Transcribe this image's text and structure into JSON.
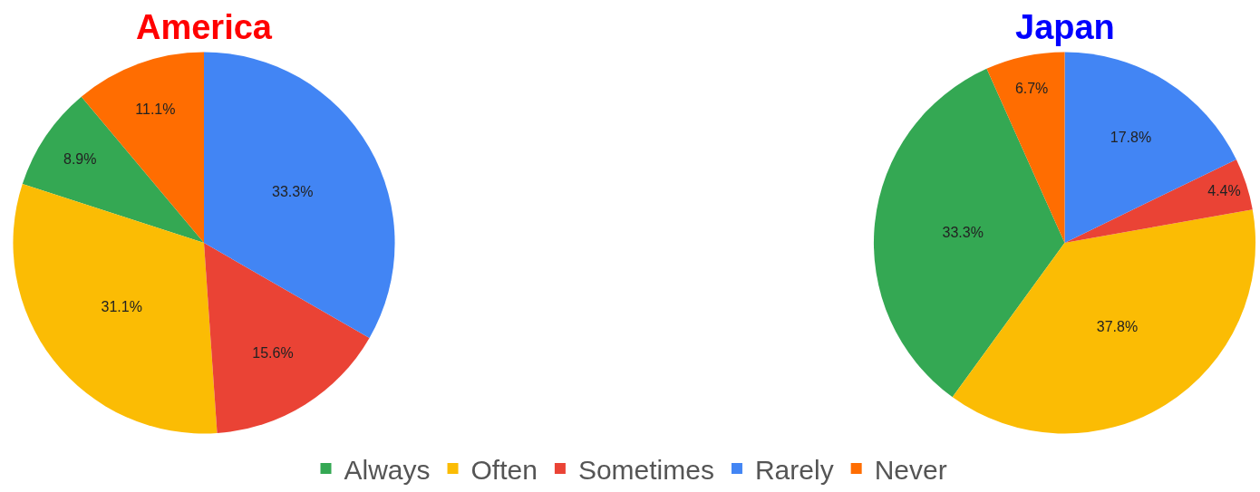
{
  "chart_data": {
    "type": "pie",
    "categories": [
      "Always",
      "Often",
      "Sometimes",
      "Rarely",
      "Never"
    ],
    "colors": [
      "#34a853",
      "#fbbc04",
      "#ea4335",
      "#4285f4",
      "#ff6d01"
    ],
    "legend": "bottom",
    "series": [
      {
        "name": "America",
        "values": [
          8.9,
          31.1,
          15.6,
          33.3,
          11.1
        ],
        "value_labels": [
          "8.9%",
          "31.1%",
          "15.6%",
          "33.3%",
          "11.1%"
        ]
      },
      {
        "name": "Japan",
        "values": [
          33.3,
          37.8,
          4.4,
          17.8,
          6.7
        ],
        "value_labels": [
          "33.3%",
          "37.8%",
          "4.4%",
          "17.8%",
          "6.7%"
        ]
      }
    ]
  }
}
